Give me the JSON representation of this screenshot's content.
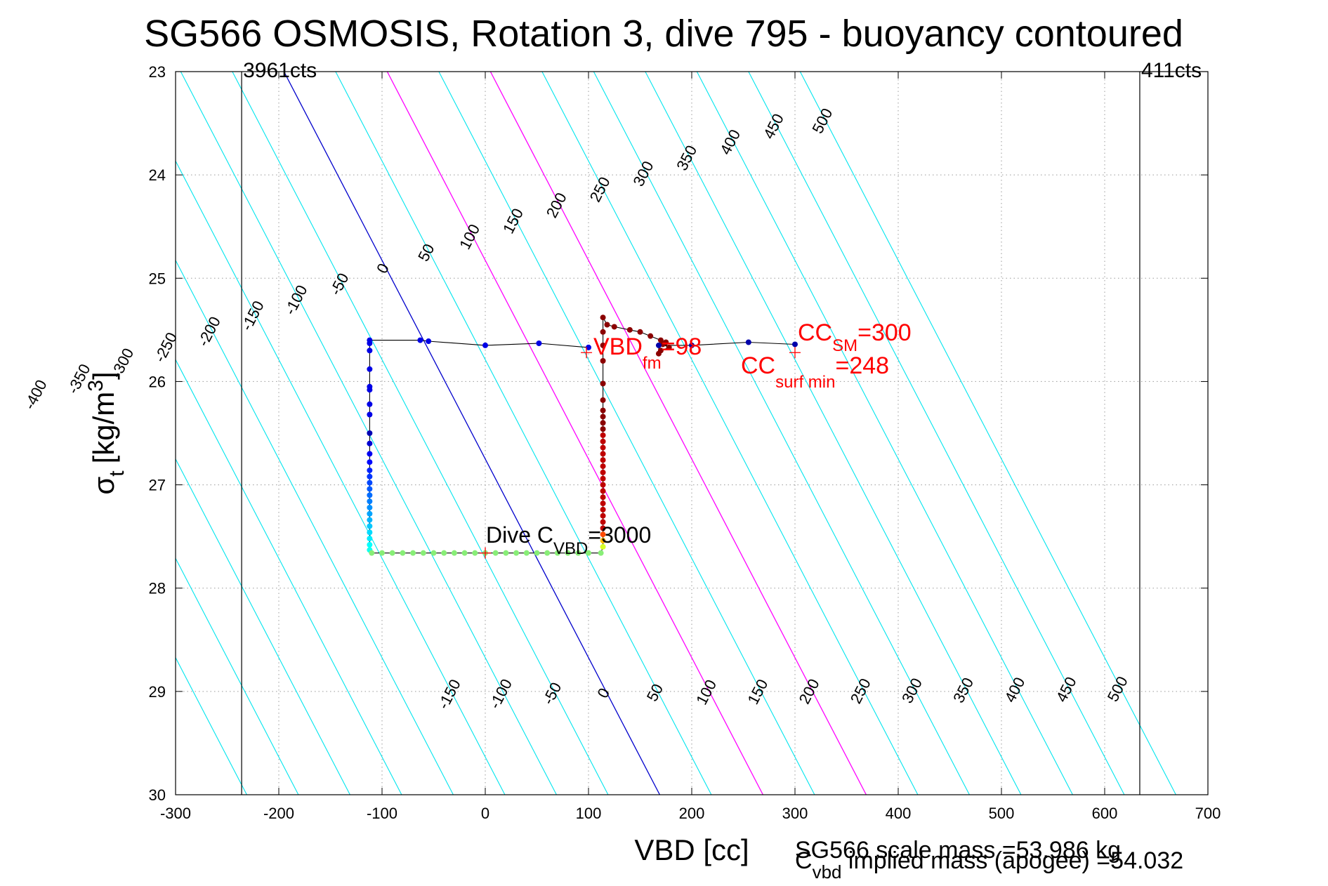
{
  "chart_data": {
    "type": "scatter",
    "title": "SG566 OSMOSIS, Rotation 3, dive 795 - buoyancy contoured",
    "xlabel": "VBD [cc]",
    "ylabel_main": "σ",
    "ylabel_sub": "t",
    "ylabel_unit": "[kg/m",
    "ylabel_sup": "3",
    "ylabel_close": "]",
    "xlim": [
      -300,
      700
    ],
    "ylim": [
      23,
      30
    ],
    "y_reversed": true,
    "grid": true,
    "x_ticks": [
      -300,
      -200,
      -100,
      0,
      100,
      200,
      300,
      400,
      500,
      600,
      700
    ],
    "y_ticks": [
      23,
      24,
      25,
      26,
      27,
      28,
      29,
      30
    ],
    "contour_levels": [
      -400,
      -350,
      -300,
      -250,
      -200,
      -150,
      -100,
      -50,
      0,
      50,
      100,
      150,
      200,
      250,
      300,
      350,
      400,
      450,
      500
    ],
    "contour_labels_top": [
      "-400",
      "-350",
      "-300",
      "-250",
      "-200",
      "-150",
      "-100",
      "-50",
      "0",
      "50",
      "100",
      "150",
      "200",
      "250",
      "300",
      "350",
      "400",
      "450",
      "500"
    ],
    "contour_labels_bottom": [
      "-150",
      "-100",
      "-50",
      "0",
      "50",
      "100",
      "150",
      "200",
      "250",
      "300",
      "350",
      "400",
      "450",
      "500"
    ],
    "contour_colors": {
      "default": "#00e5ee",
      "zero": "#0000cc",
      "highlight": "#ff00ff"
    },
    "highlight_levels": [
      100,
      200
    ],
    "count_lines": [
      {
        "x": -236,
        "label": "3961cts"
      },
      {
        "x": 634,
        "label": "411cts"
      }
    ],
    "descent": [
      {
        "x": 100,
        "y": 25.67
      },
      {
        "x": 52,
        "y": 25.63
      },
      {
        "x": 0,
        "y": 25.65
      },
      {
        "x": -55,
        "y": 25.61
      },
      {
        "x": -63,
        "y": 25.6
      },
      {
        "x": -112,
        "y": 25.6
      },
      {
        "x": -112,
        "y": 25.63
      },
      {
        "x": -112,
        "y": 25.7
      },
      {
        "x": -112,
        "y": 25.88
      },
      {
        "x": -112,
        "y": 26.05
      },
      {
        "x": -112,
        "y": 26.08
      },
      {
        "x": -112,
        "y": 26.22
      },
      {
        "x": -112,
        "y": 26.32
      },
      {
        "x": -112,
        "y": 26.5
      },
      {
        "x": -112,
        "y": 26.6
      },
      {
        "x": -112,
        "y": 26.7
      },
      {
        "x": -112,
        "y": 26.78
      },
      {
        "x": -112,
        "y": 26.86
      },
      {
        "x": -112,
        "y": 26.92
      },
      {
        "x": -112,
        "y": 26.98
      },
      {
        "x": -112,
        "y": 27.04
      },
      {
        "x": -112,
        "y": 27.1
      },
      {
        "x": -112,
        "y": 27.16
      },
      {
        "x": -112,
        "y": 27.22
      },
      {
        "x": -112,
        "y": 27.28
      },
      {
        "x": -112,
        "y": 27.34
      },
      {
        "x": -112,
        "y": 27.4
      },
      {
        "x": -112,
        "y": 27.46
      },
      {
        "x": -112,
        "y": 27.52
      },
      {
        "x": -112,
        "y": 27.58
      },
      {
        "x": -112,
        "y": 27.63
      }
    ],
    "bottom_transit": [
      {
        "x": -110,
        "y": 27.66
      },
      {
        "x": -100,
        "y": 27.66
      },
      {
        "x": -90,
        "y": 27.66
      },
      {
        "x": -80,
        "y": 27.66
      },
      {
        "x": -70,
        "y": 27.66
      },
      {
        "x": -60,
        "y": 27.66
      },
      {
        "x": -50,
        "y": 27.66
      },
      {
        "x": -40,
        "y": 27.66
      },
      {
        "x": -30,
        "y": 27.66
      },
      {
        "x": -20,
        "y": 27.66
      },
      {
        "x": -10,
        "y": 27.66
      },
      {
        "x": 0,
        "y": 27.66
      },
      {
        "x": 10,
        "y": 27.66
      },
      {
        "x": 20,
        "y": 27.66
      },
      {
        "x": 30,
        "y": 27.66
      },
      {
        "x": 40,
        "y": 27.66
      },
      {
        "x": 50,
        "y": 27.66
      },
      {
        "x": 60,
        "y": 27.66
      },
      {
        "x": 70,
        "y": 27.66
      },
      {
        "x": 80,
        "y": 27.66
      },
      {
        "x": 90,
        "y": 27.66
      },
      {
        "x": 100,
        "y": 27.66
      },
      {
        "x": 112,
        "y": 27.66
      }
    ],
    "ascent": [
      {
        "x": 114,
        "y": 27.6
      },
      {
        "x": 114,
        "y": 27.54
      },
      {
        "x": 114,
        "y": 27.48
      },
      {
        "x": 114,
        "y": 27.42
      },
      {
        "x": 114,
        "y": 27.36
      },
      {
        "x": 114,
        "y": 27.3
      },
      {
        "x": 114,
        "y": 27.24
      },
      {
        "x": 114,
        "y": 27.18
      },
      {
        "x": 114,
        "y": 27.12
      },
      {
        "x": 114,
        "y": 27.06
      },
      {
        "x": 114,
        "y": 27.0
      },
      {
        "x": 114,
        "y": 26.94
      },
      {
        "x": 114,
        "y": 26.88
      },
      {
        "x": 114,
        "y": 26.82
      },
      {
        "x": 114,
        "y": 26.76
      },
      {
        "x": 114,
        "y": 26.7
      },
      {
        "x": 114,
        "y": 26.64
      },
      {
        "x": 114,
        "y": 26.58
      },
      {
        "x": 114,
        "y": 26.52
      },
      {
        "x": 114,
        "y": 26.46
      },
      {
        "x": 114,
        "y": 26.4
      },
      {
        "x": 114,
        "y": 26.34
      },
      {
        "x": 114,
        "y": 26.28
      },
      {
        "x": 114,
        "y": 26.18
      },
      {
        "x": 114,
        "y": 26.02
      },
      {
        "x": 114,
        "y": 25.8
      },
      {
        "x": 114,
        "y": 25.65
      },
      {
        "x": 114,
        "y": 25.52
      },
      {
        "x": 114,
        "y": 25.38
      },
      {
        "x": 118,
        "y": 25.45
      },
      {
        "x": 125,
        "y": 25.47
      },
      {
        "x": 140,
        "y": 25.5
      },
      {
        "x": 150,
        "y": 25.52
      },
      {
        "x": 160,
        "y": 25.56
      },
      {
        "x": 170,
        "y": 25.6
      },
      {
        "x": 175,
        "y": 25.62
      },
      {
        "x": 172,
        "y": 25.64
      },
      {
        "x": 178,
        "y": 25.67
      },
      {
        "x": 170,
        "y": 25.7
      },
      {
        "x": 168,
        "y": 25.73
      }
    ],
    "surface": [
      {
        "x": 168,
        "y": 25.65
      },
      {
        "x": 200,
        "y": 25.65
      },
      {
        "x": 255,
        "y": 25.62
      },
      {
        "x": 300,
        "y": 25.64
      }
    ],
    "markers": [
      {
        "x": 98,
        "y": 25.72,
        "color": "#ff0000"
      },
      {
        "x": 300,
        "y": 25.72,
        "color": "#ff0000"
      },
      {
        "x": 0,
        "y": 27.66,
        "color": "#ff0000"
      }
    ],
    "annotations": {
      "vbd_fm": {
        "main": "VBD",
        "sub": "fm",
        "value": "=98"
      },
      "cc_sm": {
        "main": "CC",
        "sub": "SM",
        "value": "=300"
      },
      "cc_surf": {
        "main": "CC",
        "sub": "surf min",
        "value": "=248"
      },
      "dive_cvbd": {
        "main": "Dive C",
        "sub": "VBD",
        "value": "=3000"
      }
    },
    "footer": {
      "scale_mass": "SG566 scale mass =53.986 kg",
      "implied_main": "C",
      "implied_sub": "vbd",
      "implied_text": " implied mass (apogee) =54.032"
    },
    "colors": {
      "trajectory_line": "#000000",
      "grid": "#999999",
      "annotation_red": "#ff0000"
    }
  }
}
